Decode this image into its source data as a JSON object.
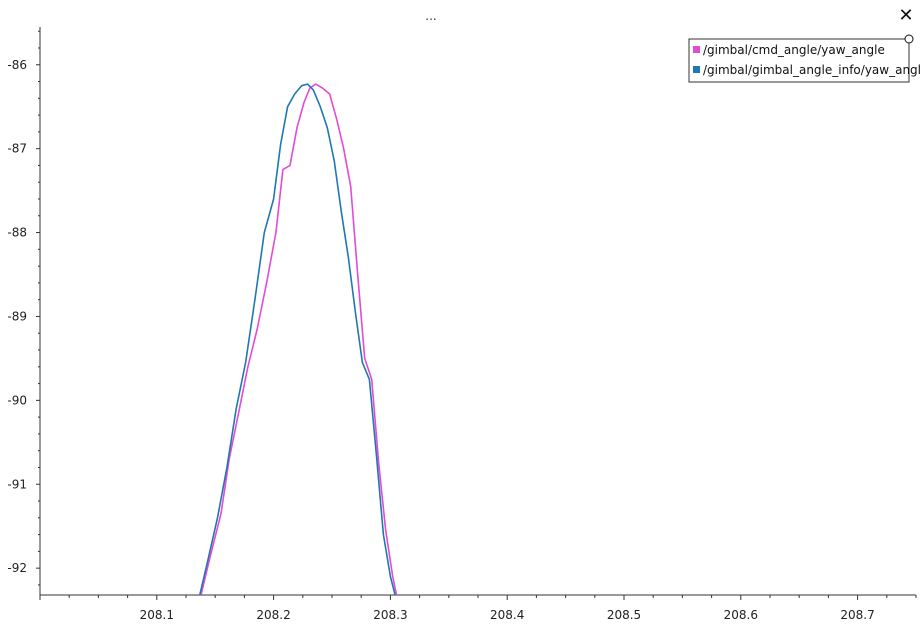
{
  "window": {
    "title": "...",
    "close_glyph": "✕"
  },
  "chart_data": {
    "type": "line",
    "title": "...",
    "xlabel": "",
    "ylabel": "",
    "xlim": [
      208.0,
      208.75
    ],
    "ylim": [
      -92.32,
      -85.55
    ],
    "x_ticks": [
      208.1,
      208.2,
      208.3,
      208.4,
      208.5,
      208.6,
      208.7
    ],
    "x_tick_labels": [
      "208.1",
      "208.2",
      "208.3",
      "208.4",
      "208.5",
      "208.6",
      "208.7"
    ],
    "x_minor_step": 0.025,
    "y_ticks": [
      -86,
      -87,
      -88,
      -89,
      -90,
      -91,
      -92
    ],
    "y_tick_labels": [
      "-86",
      "-87",
      "-88",
      "-89",
      "-90",
      "-91",
      "-92"
    ],
    "grid": false,
    "legend_position": "top-right",
    "series": [
      {
        "name": "/gimbal/cmd_angle/yaw_angle",
        "color": "#e34ad6",
        "x": [
          208.137,
          208.145,
          208.155,
          208.162,
          208.17,
          208.178,
          208.186,
          208.194,
          208.202,
          208.208,
          208.214,
          208.22,
          208.226,
          208.231,
          208.236,
          208.242,
          208.248,
          208.254,
          208.26,
          208.266,
          208.272,
          208.278,
          208.284,
          208.29,
          208.296,
          208.302,
          208.306
        ],
        "values": [
          -92.37,
          -91.9,
          -91.35,
          -90.7,
          -90.15,
          -89.6,
          -89.15,
          -88.6,
          -88.0,
          -87.25,
          -87.2,
          -86.75,
          -86.45,
          -86.28,
          -86.23,
          -86.28,
          -86.35,
          -86.65,
          -87.0,
          -87.45,
          -88.5,
          -89.5,
          -89.75,
          -90.75,
          -91.55,
          -92.1,
          -92.37
        ]
      },
      {
        "name": "/gimbal/gimbal_angle_info/yaw_angle",
        "color": "#1f77b4",
        "x": [
          208.136,
          208.143,
          208.152,
          208.16,
          208.168,
          208.176,
          208.184,
          208.192,
          208.2,
          208.206,
          208.212,
          208.218,
          208.224,
          208.229,
          208.234,
          208.24,
          208.246,
          208.252,
          208.258,
          208.264,
          208.27,
          208.276,
          208.282,
          208.288,
          208.294,
          208.3,
          208.305
        ],
        "values": [
          -92.37,
          -91.95,
          -91.4,
          -90.8,
          -90.1,
          -89.55,
          -88.8,
          -88.0,
          -87.6,
          -86.95,
          -86.5,
          -86.35,
          -86.25,
          -86.23,
          -86.3,
          -86.5,
          -86.75,
          -87.15,
          -87.75,
          -88.3,
          -88.95,
          -89.55,
          -89.75,
          -90.65,
          -91.6,
          -92.1,
          -92.37
        ]
      }
    ]
  }
}
